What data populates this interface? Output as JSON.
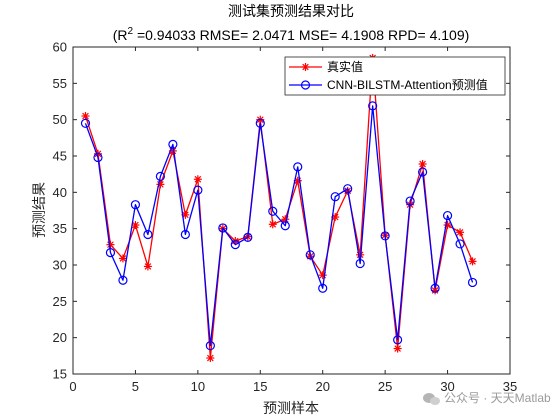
{
  "chart_data": {
    "type": "line",
    "title": "测试集预测结果对比",
    "subtitle_prefix": "(R",
    "subtitle_sup": "2",
    "subtitle_rest": " =0.94033 RMSE= 2.0471 MSE= 4.1908 RPD= 4.109)",
    "xlabel": "预测样本",
    "ylabel": "预测结果",
    "xlim": [
      0,
      35
    ],
    "ylim": [
      15,
      60
    ],
    "xticks": [
      0,
      5,
      10,
      15,
      20,
      25,
      30,
      35
    ],
    "yticks": [
      15,
      20,
      25,
      30,
      35,
      40,
      45,
      50,
      55,
      60
    ],
    "grid": false,
    "legend_position": "top-right",
    "x": [
      1,
      2,
      3,
      4,
      5,
      6,
      7,
      8,
      9,
      10,
      11,
      12,
      13,
      14,
      15,
      16,
      17,
      18,
      19,
      20,
      21,
      22,
      23,
      24,
      25,
      26,
      27,
      28,
      29,
      30,
      31,
      32
    ],
    "series": [
      {
        "name": "真实值",
        "color": "#ff0000",
        "marker": "asterisk",
        "values": [
          50.5,
          45.3,
          32.8,
          30.9,
          35.5,
          29.8,
          41.1,
          45.7,
          36.9,
          41.8,
          17.2,
          35.0,
          33.3,
          33.9,
          50.0,
          35.6,
          36.3,
          41.6,
          31.2,
          28.6,
          36.6,
          40.2,
          31.4,
          58.5,
          34.1,
          18.5,
          38.3,
          43.9,
          26.5,
          35.5,
          34.5,
          30.5
        ]
      },
      {
        "name": "CNN-BILSTM-Attention预测值",
        "color": "#0000ff",
        "marker": "circle",
        "values": [
          49.5,
          44.8,
          31.7,
          27.9,
          38.3,
          34.2,
          42.2,
          46.6,
          34.2,
          40.3,
          18.9,
          35.1,
          32.8,
          33.8,
          49.5,
          37.4,
          35.4,
          43.5,
          31.4,
          26.8,
          39.4,
          40.5,
          30.2,
          51.9,
          34.0,
          19.7,
          38.8,
          42.8,
          26.8,
          36.8,
          32.9,
          27.6
        ]
      }
    ]
  },
  "watermark": {
    "icon": "wechat-icon",
    "text": "公众号 · 天天Matlab"
  }
}
